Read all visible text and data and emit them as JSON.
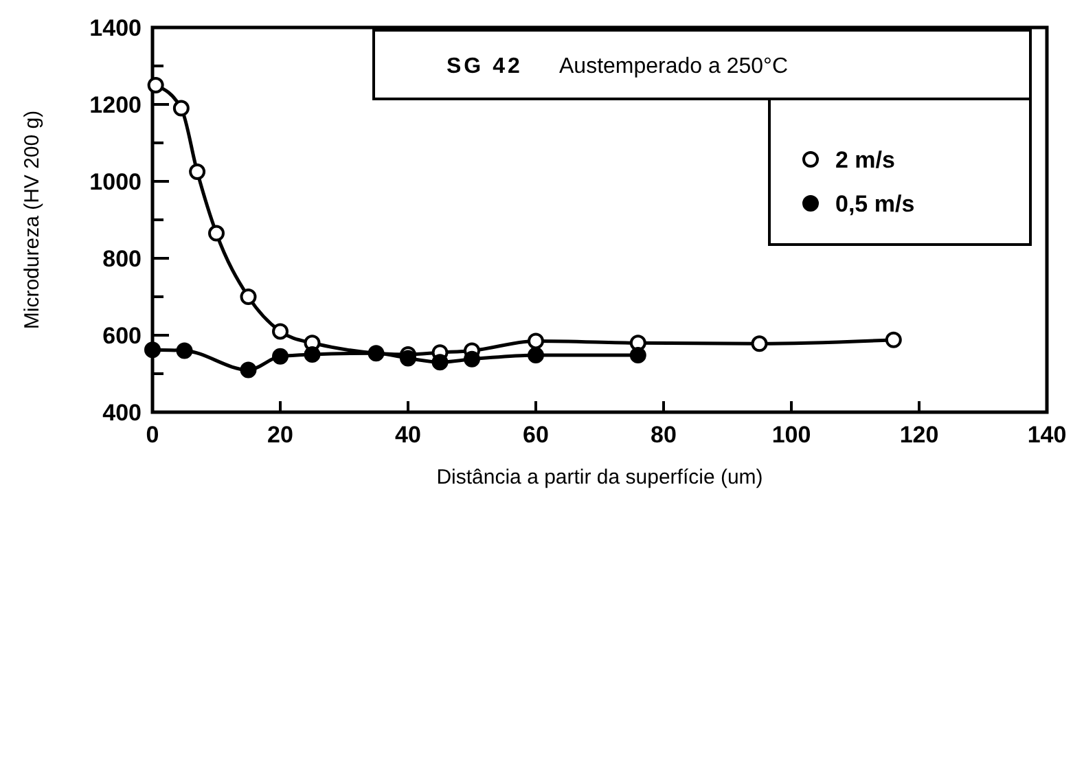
{
  "chart_data": {
    "type": "line",
    "title": "SG 42",
    "subtitle": "Austemperado a 250°C",
    "xlabel": "Distância a partir da superfície (um)",
    "ylabel": "Microdureza (HV 200 g)",
    "xlim": [
      0,
      140
    ],
    "ylim": [
      400,
      1400
    ],
    "xticks": [
      0,
      20,
      40,
      60,
      80,
      100,
      120,
      140
    ],
    "yticks": [
      400,
      {
        "value": 500,
        "label": null
      },
      600,
      {
        "value": 700,
        "label": null
      },
      800,
      {
        "value": 900,
        "label": null
      },
      1000,
      {
        "value": 1100,
        "label": null
      },
      1200,
      {
        "value": 1300,
        "label": null
      },
      1400
    ],
    "legend": "top right",
    "grid": false,
    "series": [
      {
        "name": "2 m/s",
        "color": "#000000",
        "marker": "circle",
        "x": [
          0.5,
          4.5,
          7,
          10,
          15,
          20,
          25,
          40,
          45,
          50,
          60,
          76,
          95,
          116
        ],
        "values": [
          1250,
          1190,
          1025,
          865,
          700,
          610,
          580,
          550,
          555,
          560,
          585,
          580,
          578,
          588
        ]
      },
      {
        "name": "0,5 m/s",
        "color": "#000000",
        "marker": "circle",
        "x": [
          0,
          5,
          15,
          20,
          25,
          35,
          40,
          45,
          50,
          60,
          76
        ],
        "values": [
          562,
          560,
          510,
          545,
          550,
          553,
          540,
          530,
          538,
          548,
          548
        ]
      }
    ]
  }
}
